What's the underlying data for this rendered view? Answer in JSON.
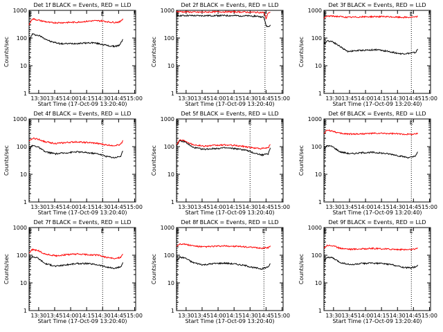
{
  "figure": {
    "xlabel": "Start Time (17-Oct-09 13:20:40)",
    "ylabel": "Counts/sec",
    "x_ticks": [
      "13:30",
      "13:45",
      "14:00",
      "14:15",
      "14:30",
      "14:45",
      "15:00"
    ],
    "y_ticks": [
      "1",
      "10",
      "100",
      "1000"
    ],
    "marker_labels": [
      "E",
      "E"
    ],
    "colors": {
      "events": "#000000",
      "lld": "#ff0000"
    }
  },
  "chart_data": [
    {
      "type": "line",
      "title": "Det 1f BLACK = Events, RED = LLD",
      "x_range_minutes": [
        0,
        100
      ],
      "dotted_lines_minutes": [
        0,
        69
      ],
      "ylim": [
        1,
        1000
      ],
      "yscale": "log",
      "series": [
        {
          "color": "#000000",
          "x": [
            0,
            3,
            10,
            20,
            30,
            45,
            60,
            68,
            75,
            80,
            85,
            88
          ],
          "y": [
            80,
            140,
            120,
            75,
            62,
            64,
            68,
            60,
            52,
            50,
            55,
            90
          ]
        },
        {
          "color": "#ff0000",
          "x": [
            0,
            3,
            10,
            20,
            30,
            45,
            60,
            68,
            75,
            80,
            85,
            88
          ],
          "y": [
            300,
            500,
            430,
            360,
            360,
            375,
            420,
            420,
            380,
            370,
            380,
            500
          ]
        }
      ]
    },
    {
      "type": "line",
      "title": "Det 2f BLACK = Events, RED = LLD",
      "x_range_minutes": [
        0,
        100
      ],
      "dotted_lines_minutes": [
        -3,
        83
      ],
      "ylim": [
        1,
        1000
      ],
      "yscale": "log",
      "series": [
        {
          "color": "#000000",
          "x": [
            0,
            10,
            20,
            40,
            60,
            75,
            82,
            84,
            86,
            88
          ],
          "y": [
            650,
            650,
            640,
            650,
            640,
            620,
            560,
            280,
            260,
            300
          ]
        },
        {
          "color": "#ff0000",
          "x": [
            0,
            10,
            20,
            40,
            60,
            75,
            82,
            84,
            86,
            88
          ],
          "y": [
            900,
            880,
            860,
            890,
            880,
            850,
            840,
            500,
            820,
            860
          ]
        }
      ]
    },
    {
      "type": "line",
      "title": "Det 3f BLACK = Events, RED = LLD",
      "x_range_minutes": [
        0,
        100
      ],
      "dotted_lines_minutes": [
        0,
        82
      ],
      "ylim": [
        1,
        1000
      ],
      "yscale": "log",
      "series": [
        {
          "color": "#000000",
          "x": [
            0,
            3,
            8,
            15,
            22,
            35,
            50,
            62,
            72,
            80,
            86,
            88
          ],
          "y": [
            60,
            80,
            75,
            50,
            33,
            36,
            38,
            32,
            27,
            28,
            30,
            40
          ]
        },
        {
          "color": "#ff0000",
          "x": [
            0,
            3,
            8,
            15,
            22,
            35,
            50,
            62,
            72,
            80,
            86,
            88
          ],
          "y": [
            520,
            620,
            620,
            600,
            560,
            580,
            600,
            580,
            560,
            560,
            570,
            610
          ]
        }
      ]
    },
    {
      "type": "line",
      "title": "Det 4f BLACK = Events, RED = LLD",
      "x_range_minutes": [
        0,
        100
      ],
      "dotted_lines_minutes": [
        0,
        69
      ],
      "ylim": [
        1,
        1000
      ],
      "yscale": "log",
      "series": [
        {
          "color": "#000000",
          "x": [
            0,
            3,
            8,
            15,
            25,
            35,
            45,
            55,
            65,
            72,
            80,
            86,
            88
          ],
          "y": [
            80,
            110,
            100,
            65,
            55,
            60,
            65,
            60,
            55,
            45,
            40,
            45,
            70
          ]
        },
        {
          "color": "#ff0000",
          "x": [
            0,
            3,
            8,
            15,
            25,
            35,
            45,
            55,
            65,
            72,
            80,
            86,
            88
          ],
          "y": [
            150,
            200,
            190,
            150,
            130,
            140,
            150,
            140,
            130,
            115,
            110,
            120,
            170
          ]
        }
      ]
    },
    {
      "type": "line",
      "title": "Det 5f BLACK = Events, RED = LLD",
      "x_range_minutes": [
        0,
        100
      ],
      "dotted_lines_minutes": [
        0,
        69
      ],
      "ylim": [
        1,
        1000
      ],
      "yscale": "log",
      "series": [
        {
          "color": "#000000",
          "x": [
            0,
            3,
            8,
            15,
            25,
            35,
            45,
            55,
            65,
            72,
            80,
            86,
            88
          ],
          "y": [
            110,
            160,
            150,
            95,
            80,
            85,
            90,
            85,
            75,
            60,
            50,
            55,
            90
          ]
        },
        {
          "color": "#ff0000",
          "x": [
            0,
            3,
            8,
            15,
            25,
            35,
            45,
            55,
            65,
            72,
            80,
            86,
            88
          ],
          "y": [
            120,
            175,
            165,
            120,
            105,
            110,
            115,
            110,
            100,
            90,
            85,
            90,
            120
          ]
        }
      ]
    },
    {
      "type": "line",
      "title": "Det 6f BLACK = Events, RED = LLD",
      "x_range_minutes": [
        0,
        100
      ],
      "dotted_lines_minutes": [
        0,
        82
      ],
      "ylim": [
        1,
        1000
      ],
      "yscale": "log",
      "series": [
        {
          "color": "#000000",
          "x": [
            0,
            3,
            8,
            15,
            25,
            35,
            45,
            55,
            65,
            72,
            80,
            86,
            88
          ],
          "y": [
            80,
            110,
            100,
            65,
            55,
            60,
            62,
            58,
            52,
            45,
            40,
            45,
            65
          ]
        },
        {
          "color": "#ff0000",
          "x": [
            0,
            3,
            8,
            15,
            25,
            35,
            45,
            55,
            65,
            72,
            80,
            86,
            88
          ],
          "y": [
            300,
            390,
            370,
            300,
            285,
            290,
            300,
            300,
            295,
            285,
            280,
            285,
            310
          ]
        }
      ]
    },
    {
      "type": "line",
      "title": "Det 7f BLACK = Events, RED = LLD",
      "x_range_minutes": [
        0,
        100
      ],
      "dotted_lines_minutes": [
        0,
        69
      ],
      "ylim": [
        1,
        1000
      ],
      "yscale": "log",
      "series": [
        {
          "color": "#000000",
          "x": [
            0,
            3,
            8,
            15,
            25,
            35,
            45,
            55,
            65,
            72,
            80,
            86,
            88
          ],
          "y": [
            65,
            90,
            80,
            50,
            40,
            45,
            50,
            50,
            45,
            38,
            33,
            38,
            55
          ]
        },
        {
          "color": "#ff0000",
          "x": [
            0,
            3,
            8,
            15,
            25,
            35,
            45,
            55,
            65,
            72,
            80,
            86,
            88
          ],
          "y": [
            120,
            160,
            150,
            110,
            95,
            105,
            110,
            105,
            100,
            85,
            75,
            85,
            110
          ]
        }
      ]
    },
    {
      "type": "line",
      "title": "Det 8f BLACK = Events, RED = LLD",
      "x_range_minutes": [
        0,
        100
      ],
      "dotted_lines_minutes": [
        -3,
        82
      ],
      "ylim": [
        1,
        1000
      ],
      "yscale": "log",
      "series": [
        {
          "color": "#000000",
          "x": [
            0,
            3,
            8,
            15,
            25,
            35,
            45,
            55,
            65,
            72,
            80,
            86,
            88
          ],
          "y": [
            60,
            85,
            80,
            55,
            45,
            50,
            52,
            48,
            42,
            36,
            32,
            38,
            50
          ]
        },
        {
          "color": "#ff0000",
          "x": [
            0,
            3,
            8,
            15,
            25,
            35,
            45,
            55,
            65,
            72,
            80,
            86,
            88
          ],
          "y": [
            210,
            260,
            250,
            220,
            200,
            210,
            215,
            210,
            200,
            190,
            180,
            190,
            220
          ]
        }
      ]
    },
    {
      "type": "line",
      "title": "Det 9f BLACK = Events, RED = LLD",
      "x_range_minutes": [
        0,
        100
      ],
      "dotted_lines_minutes": [
        0,
        82
      ],
      "ylim": [
        1,
        1000
      ],
      "yscale": "log",
      "series": [
        {
          "color": "#000000",
          "x": [
            0,
            3,
            8,
            15,
            25,
            35,
            45,
            55,
            65,
            72,
            80,
            86,
            88
          ],
          "y": [
            60,
            85,
            80,
            55,
            45,
            50,
            52,
            50,
            45,
            38,
            35,
            38,
            45
          ]
        },
        {
          "color": "#ff0000",
          "x": [
            0,
            3,
            8,
            15,
            25,
            35,
            45,
            55,
            65,
            72,
            80,
            86,
            88
          ],
          "y": [
            180,
            230,
            220,
            180,
            165,
            170,
            175,
            170,
            165,
            160,
            160,
            165,
            185
          ]
        }
      ]
    }
  ]
}
